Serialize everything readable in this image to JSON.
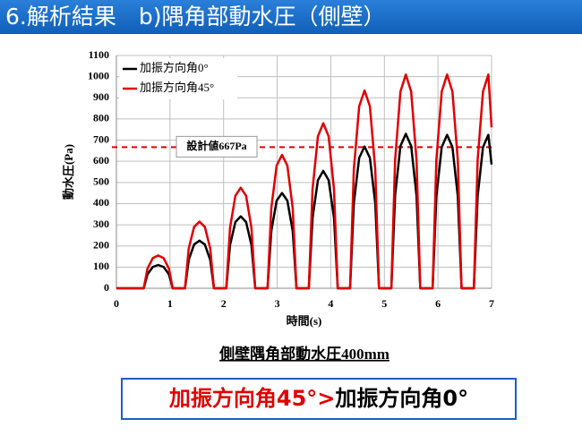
{
  "header": {
    "title": "6.解析結果　b)隅角部動水圧（側壁）"
  },
  "chart_data": {
    "type": "line",
    "xlabel": "時間(s)",
    "ylabel": "動水圧(Pa)",
    "x": [
      0,
      0.51,
      0.58,
      0.68,
      0.78,
      0.88,
      0.98,
      1.05,
      1.28,
      1.35,
      1.45,
      1.55,
      1.65,
      1.75,
      1.82,
      2.05,
      2.12,
      2.22,
      2.32,
      2.42,
      2.52,
      2.59,
      2.82,
      2.89,
      2.99,
      3.09,
      3.19,
      3.29,
      3.36,
      3.59,
      3.66,
      3.76,
      3.86,
      3.96,
      4.06,
      4.13,
      4.36,
      4.43,
      4.53,
      4.63,
      4.73,
      4.83,
      4.9,
      5.13,
      5.2,
      5.3,
      5.4,
      5.5,
      5.6,
      5.67,
      5.9,
      5.97,
      6.07,
      6.17,
      6.27,
      6.37,
      6.44,
      6.67,
      6.74,
      6.84,
      6.94,
      7.0
    ],
    "series": [
      {
        "name": "加振方向角0°",
        "color": "#000000",
        "values": [
          0,
          0,
          66,
          101,
          110,
          101,
          66,
          0,
          0,
          135,
          207,
          225,
          207,
          135,
          0,
          0,
          204,
          313,
          340,
          313,
          204,
          0,
          0,
          270,
          414,
          450,
          414,
          270,
          0,
          0,
          333,
          511,
          555,
          511,
          333,
          0,
          0,
          402,
          616,
          670,
          616,
          402,
          0,
          0,
          438,
          672,
          730,
          672,
          438,
          0,
          0,
          435,
          667,
          725,
          667,
          435,
          0,
          0,
          435,
          667,
          725,
          585
        ]
      },
      {
        "name": "加振方向角45°",
        "color": "#e00000",
        "values": [
          0,
          0,
          93,
          143,
          155,
          143,
          93,
          0,
          0,
          189,
          290,
          315,
          290,
          189,
          0,
          0,
          285,
          437,
          475,
          437,
          285,
          0,
          0,
          378,
          580,
          630,
          580,
          378,
          0,
          0,
          468,
          718,
          780,
          718,
          468,
          0,
          0,
          561,
          860,
          935,
          860,
          561,
          0,
          0,
          606,
          929,
          1010,
          929,
          606,
          0,
          0,
          606,
          929,
          1010,
          929,
          606,
          0,
          0,
          606,
          929,
          1010,
          760
        ]
      }
    ],
    "xlim": [
      0,
      7
    ],
    "xticks": [
      0,
      1,
      2,
      3,
      4,
      5,
      6,
      7
    ],
    "ylim": [
      0,
      1100
    ],
    "yticks": [
      0,
      100,
      200,
      300,
      400,
      500,
      600,
      700,
      800,
      900,
      1000,
      1100
    ],
    "grid": true,
    "legend": "upper left",
    "reference_line": {
      "value": 667,
      "label": "設計値667Pa",
      "color": "#e00000"
    }
  },
  "caption": "側壁隅角部動水圧400mm",
  "conclusion": {
    "left": "加振方向角45°>",
    "right": "加振方向角0°"
  }
}
